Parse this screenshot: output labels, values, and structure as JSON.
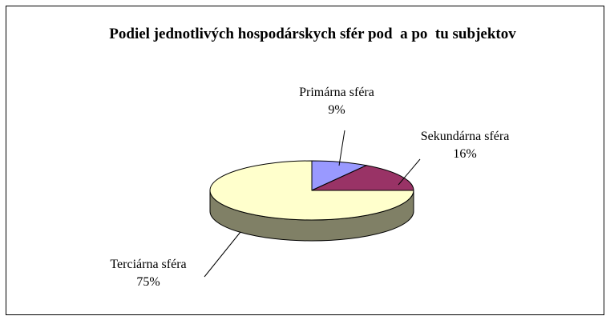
{
  "chart_data": {
    "type": "pie",
    "title": "Podiel jednotlivých hospodárskych sfér pod  a po  tu subjektov",
    "categories": [
      "Primárna sféra",
      "Sekundárna sféra",
      "Terciárna sféra"
    ],
    "values": [
      9,
      16,
      75
    ],
    "value_labels": [
      "9%",
      "16%",
      "75%"
    ],
    "colors": [
      "#9999ff",
      "#993366",
      "#ffffcc"
    ],
    "side_colors": [
      "#4c4c80",
      "#4c1933",
      "#808066"
    ]
  }
}
